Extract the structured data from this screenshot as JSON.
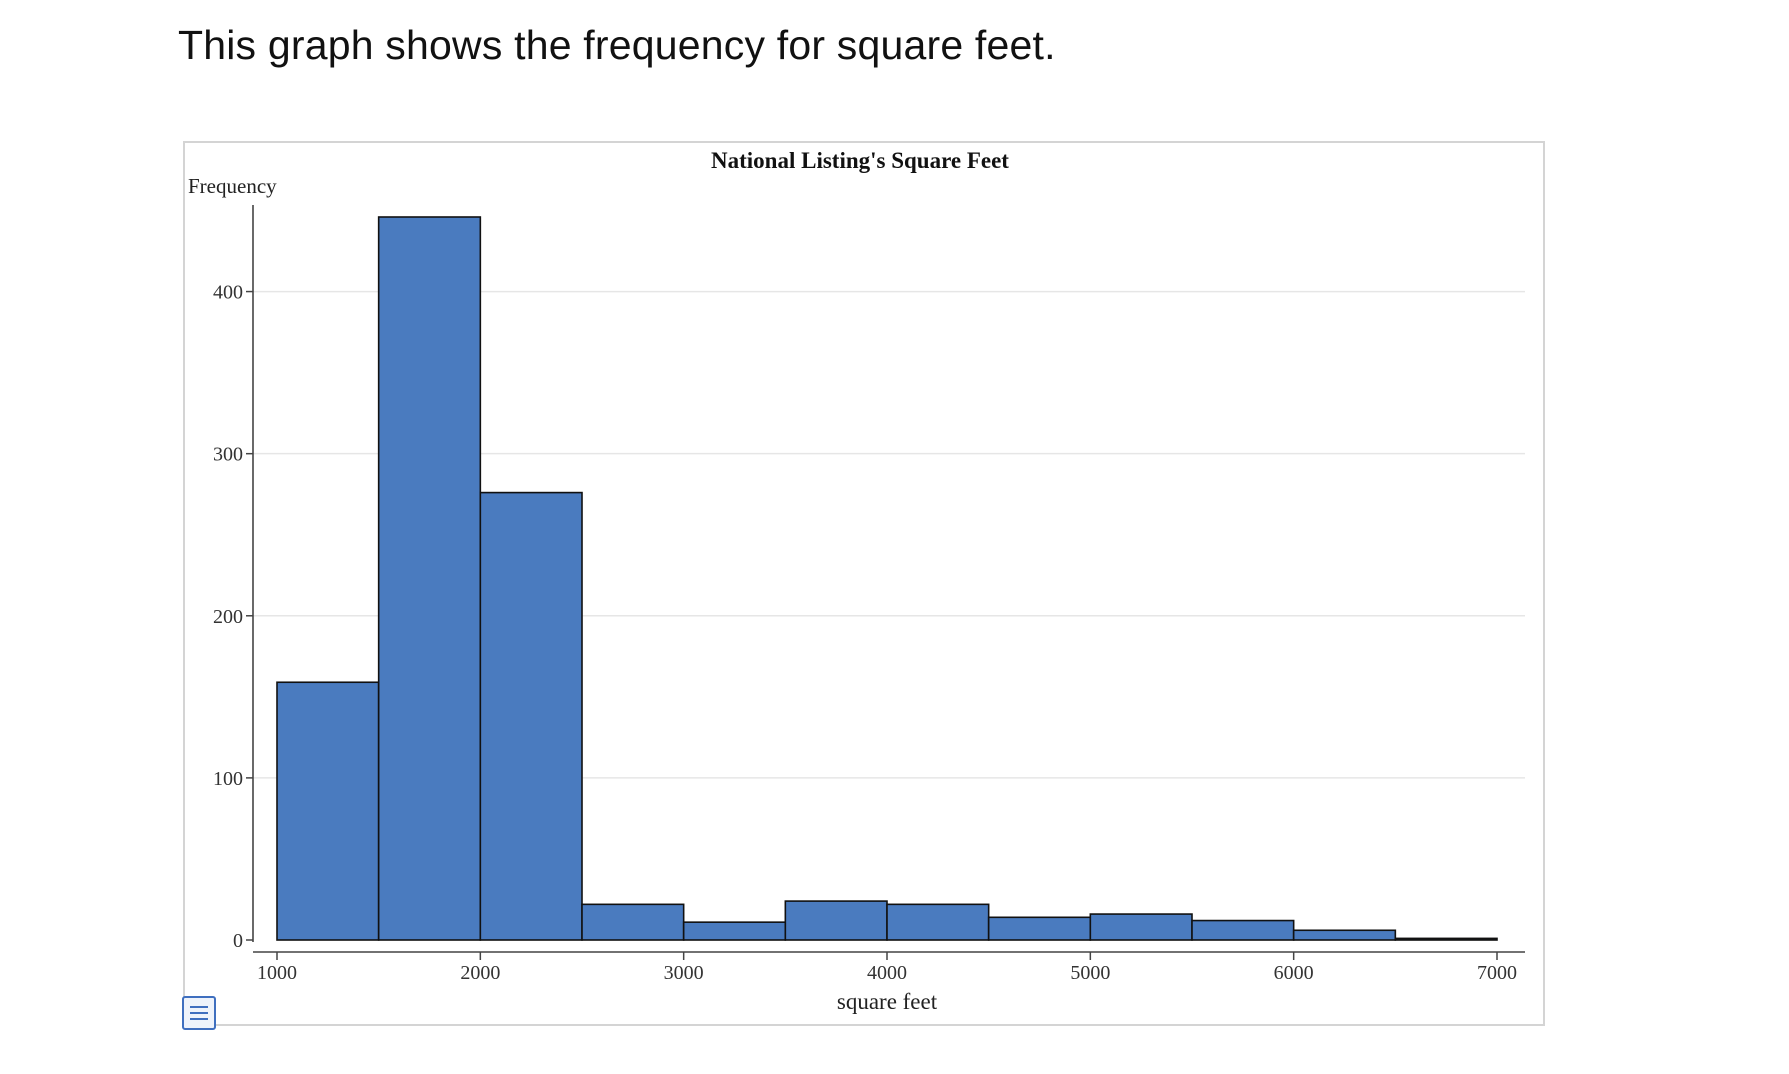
{
  "heading": "This graph shows the frequency for square feet.",
  "chart_data": {
    "type": "bar",
    "title": "National Listing's Square Feet",
    "xlabel": "square feet",
    "ylabel": "Frequency",
    "bin_edges": [
      1000,
      1500,
      2000,
      2500,
      3000,
      3500,
      4000,
      4500,
      5000,
      5500,
      6000,
      6500,
      7000
    ],
    "values": [
      159,
      446,
      276,
      22,
      11,
      24,
      22,
      14,
      16,
      12,
      6,
      1
    ],
    "xlim": [
      1000,
      7000
    ],
    "ylim": [
      0,
      446
    ],
    "x_ticks": [
      "1000",
      "2000",
      "3000",
      "4000",
      "5000",
      "6000",
      "7000"
    ],
    "y_ticks": [
      "0",
      "100",
      "200",
      "300",
      "400"
    ],
    "bar_color": "#4a7bbf",
    "grid": true
  },
  "icons": {
    "menu": "list-menu-icon"
  }
}
